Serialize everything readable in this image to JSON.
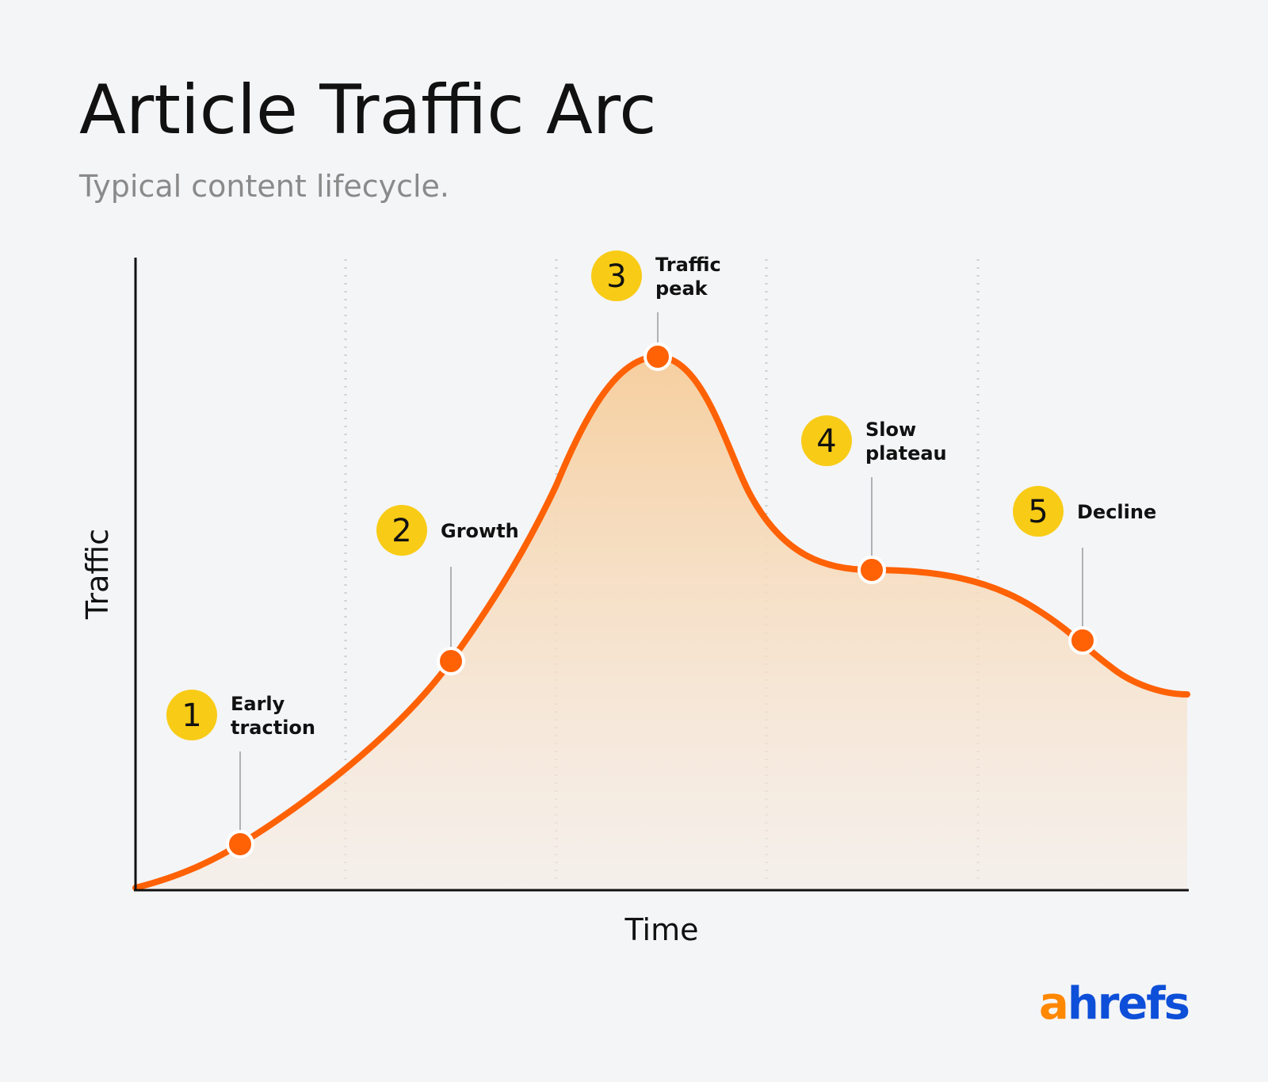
{
  "title": "Article Traffic Arc",
  "subtitle": "Typical content lifecycle.",
  "y_axis_label": "Traffic",
  "x_axis_label": "Time",
  "stages": [
    {
      "number": "1",
      "label": [
        "Early",
        "traction"
      ]
    },
    {
      "number": "2",
      "label": [
        "Growth"
      ]
    },
    {
      "number": "3",
      "label": [
        "Traffic",
        "peak"
      ]
    },
    {
      "number": "4",
      "label": [
        "Slow",
        "plateau"
      ]
    },
    {
      "number": "5",
      "label": [
        "Decline"
      ]
    }
  ],
  "logo": {
    "accent": "a",
    "rest": "hrefs"
  }
}
